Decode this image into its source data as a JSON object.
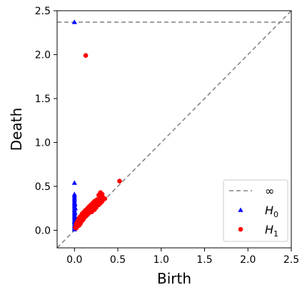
{
  "chart_data": {
    "type": "scatter",
    "title": "",
    "xlabel": "Birth",
    "ylabel": "Death",
    "xlim": [
      -0.2,
      2.5
    ],
    "ylim": [
      -0.2,
      2.5
    ],
    "x_ticks": [
      0.0,
      0.5,
      1.0,
      1.5,
      2.0,
      2.5
    ],
    "y_ticks": [
      0.0,
      0.5,
      1.0,
      1.5,
      2.0,
      2.5
    ],
    "x_tick_labels": [
      "0.0",
      "0.5",
      "1.0",
      "1.5",
      "2.0",
      "2.5"
    ],
    "y_tick_labels": [
      "0.0",
      "0.5",
      "1.0",
      "1.5",
      "2.0",
      "2.5"
    ],
    "infinity_line": {
      "label": "∞",
      "y": 2.37,
      "color": "#808080",
      "style": "dashed"
    },
    "diagonal": {
      "color": "#808080",
      "style": "dashed"
    },
    "legend": {
      "position": "lower-right",
      "entries": [
        {
          "label": "∞",
          "marker": "dashed-line"
        },
        {
          "label": "H",
          "sub": "0",
          "marker": "triangle"
        },
        {
          "label": "H",
          "sub": "1",
          "marker": "circle"
        }
      ]
    },
    "series": [
      {
        "name": "H0",
        "marker": "triangle",
        "color": "#0000ff",
        "points": [
          [
            0,
            2.37
          ],
          [
            0,
            0.54
          ],
          [
            0,
            0.41
          ],
          [
            0,
            0.39
          ],
          [
            0,
            0.37
          ],
          [
            0,
            0.35
          ],
          [
            0,
            0.33
          ],
          [
            0,
            0.31
          ],
          [
            0,
            0.29
          ],
          [
            0,
            0.27
          ],
          [
            0,
            0.25
          ],
          [
            0,
            0.23
          ],
          [
            0,
            0.21
          ],
          [
            0,
            0.19
          ],
          [
            0,
            0.17
          ],
          [
            0,
            0.15
          ],
          [
            0,
            0.13
          ],
          [
            0,
            0.11
          ],
          [
            0,
            0.09
          ],
          [
            0,
            0.07
          ],
          [
            0,
            0.05
          ],
          [
            0,
            0.03
          ],
          [
            0,
            0.01
          ],
          [
            0.005,
            0.3
          ],
          [
            0.005,
            0.2
          ],
          [
            0.005,
            0.1
          ],
          [
            0.01,
            0.25
          ],
          [
            0.01,
            0.15
          ],
          [
            0.01,
            0.05
          ]
        ]
      },
      {
        "name": "H1",
        "marker": "circle",
        "color": "#ff0000",
        "points": [
          [
            0.13,
            1.99
          ],
          [
            0.52,
            0.56
          ],
          [
            0.3,
            0.43
          ],
          [
            0.32,
            0.41
          ],
          [
            0.28,
            0.4
          ],
          [
            0.33,
            0.37
          ],
          [
            0.29,
            0.36
          ],
          [
            0.26,
            0.35
          ],
          [
            0.31,
            0.34
          ],
          [
            0.23,
            0.33
          ],
          [
            0.27,
            0.32
          ],
          [
            0.34,
            0.36
          ],
          [
            0.21,
            0.31
          ],
          [
            0.25,
            0.3
          ],
          [
            0.19,
            0.29
          ],
          [
            0.22,
            0.28
          ],
          [
            0.3,
            0.31
          ],
          [
            0.17,
            0.27
          ],
          [
            0.2,
            0.26
          ],
          [
            0.24,
            0.27
          ],
          [
            0.15,
            0.25
          ],
          [
            0.18,
            0.24
          ],
          [
            0.21,
            0.24
          ],
          [
            0.13,
            0.23
          ],
          [
            0.16,
            0.22
          ],
          [
            0.19,
            0.22
          ],
          [
            0.11,
            0.21
          ],
          [
            0.14,
            0.2
          ],
          [
            0.17,
            0.2
          ],
          [
            0.09,
            0.19
          ],
          [
            0.12,
            0.18
          ],
          [
            0.15,
            0.18
          ],
          [
            0.08,
            0.17
          ],
          [
            0.1,
            0.16
          ],
          [
            0.13,
            0.16
          ],
          [
            0.06,
            0.15
          ],
          [
            0.09,
            0.14
          ],
          [
            0.11,
            0.14
          ],
          [
            0.05,
            0.13
          ],
          [
            0.07,
            0.12
          ],
          [
            0.1,
            0.12
          ],
          [
            0.04,
            0.11
          ],
          [
            0.06,
            0.1
          ],
          [
            0.08,
            0.1
          ],
          [
            0.03,
            0.09
          ],
          [
            0.05,
            0.08
          ],
          [
            0.07,
            0.08
          ],
          [
            0.02,
            0.07
          ],
          [
            0.04,
            0.06
          ],
          [
            0.06,
            0.065
          ],
          [
            0.02,
            0.05
          ],
          [
            0.03,
            0.04
          ],
          [
            0.05,
            0.055
          ],
          [
            0.01,
            0.03
          ],
          [
            0.02,
            0.025
          ],
          [
            0.25,
            0.26
          ],
          [
            0.28,
            0.29
          ],
          [
            0.32,
            0.33
          ],
          [
            0.2,
            0.21
          ],
          [
            0.23,
            0.235
          ],
          [
            0.35,
            0.36
          ],
          [
            0.26,
            0.33
          ],
          [
            0.22,
            0.3
          ],
          [
            0.18,
            0.26
          ],
          [
            0.14,
            0.22
          ],
          [
            0.1,
            0.18
          ],
          [
            0.3,
            0.38
          ]
        ]
      }
    ]
  }
}
